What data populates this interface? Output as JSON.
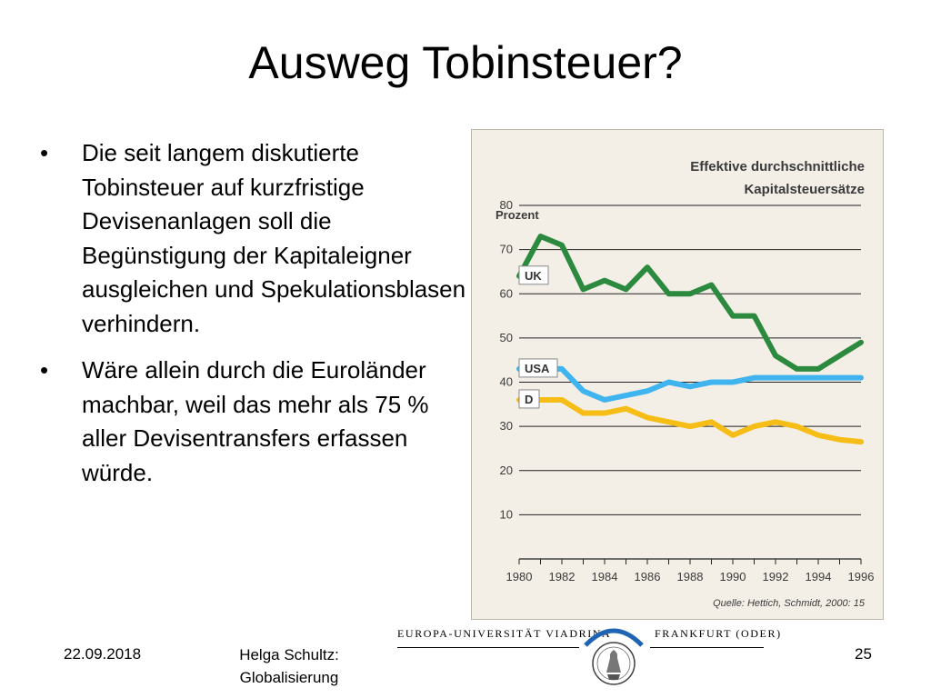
{
  "slide": {
    "title": "Ausweg Tobinsteuer?",
    "bullets": [
      {
        "marker": "•",
        "text": "Die seit langem diskutierte Tobinsteuer auf kurzfristige Devisenanlagen soll die Begünstigung der Kapitaleigner ausgleichen und Spekulationsblasen verhindern."
      },
      {
        "marker": "•",
        "text": "Wäre allein durch die Euroländer machbar, weil das mehr als 75 % aller Devisentransfers erfassen würde."
      }
    ],
    "footer": {
      "date": "22.09.2018",
      "author_line1": "Helga Schultz:",
      "author_line2": "Globalisierung",
      "page": "25"
    },
    "university": {
      "left_text": "EUROPA-UNIVERSITÄT VIADRINA",
      "right_text": "FRANKFURT (ODER)"
    }
  },
  "colors": {
    "uk": "#2b8a3e",
    "usa": "#3fb4ef",
    "d": "#f5bd16",
    "chart_bg": "#f3efe6"
  },
  "chart_data": {
    "type": "line",
    "title_line1": "Effektive durchschnittliche",
    "title_line2": "Kapitalsteuersätze",
    "ylabel": "Prozent",
    "xlabel": "",
    "source": "Quelle: Hettich, Schmidt, 2000: 15",
    "ylim": [
      0,
      80
    ],
    "xlim": [
      1980,
      1996
    ],
    "yticks": [
      10,
      20,
      30,
      40,
      50,
      60,
      70,
      80
    ],
    "xticks": [
      1980,
      1982,
      1984,
      1986,
      1988,
      1990,
      1992,
      1994,
      1996
    ],
    "grid": "horizontal",
    "x": [
      1980,
      1981,
      1982,
      1983,
      1984,
      1985,
      1986,
      1987,
      1988,
      1989,
      1990,
      1991,
      1992,
      1993,
      1994,
      1995,
      1996
    ],
    "series": [
      {
        "name": "UK",
        "color": "#2b8a3e",
        "values": [
          64,
          73,
          71,
          61,
          63,
          61,
          66,
          60,
          60,
          62,
          55,
          55,
          46,
          43,
          43,
          46,
          49
        ]
      },
      {
        "name": "USA",
        "color": "#3fb4ef",
        "values": [
          43,
          43,
          43,
          38,
          36,
          37,
          38,
          40,
          39,
          40,
          40,
          41,
          41,
          41,
          41,
          41,
          41
        ]
      },
      {
        "name": "D",
        "color": "#f5bd16",
        "values": [
          36,
          36,
          36,
          33,
          33,
          34,
          32,
          31,
          30,
          31,
          28,
          30,
          31,
          30,
          28,
          27,
          26.5
        ]
      }
    ]
  }
}
